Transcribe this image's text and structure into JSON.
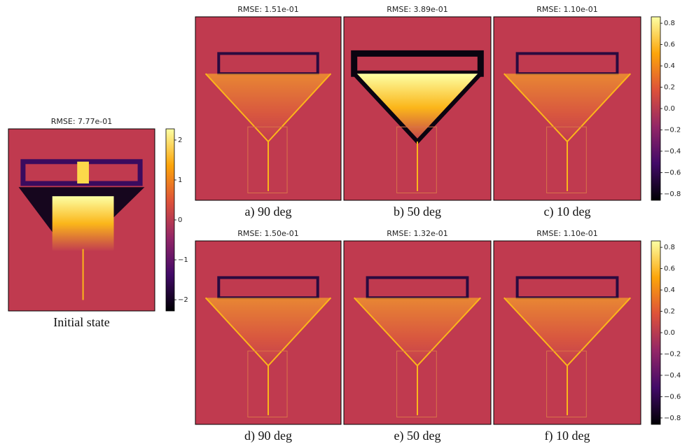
{
  "panels": [
    {
      "title": "RMSE: 7.77e-01",
      "caption": "Initial state"
    },
    {
      "title": "RMSE: 1.51e-01",
      "caption": "a) 90 deg"
    },
    {
      "title": "RMSE: 3.89e-01",
      "caption": "b) 50 deg"
    },
    {
      "title": "RMSE: 1.10e-01",
      "caption": "c) 10 deg"
    },
    {
      "title": "RMSE: 1.50e-01",
      "caption": "d) 90 deg"
    },
    {
      "title": "RMSE: 1.32e-01",
      "caption": "e) 50 deg"
    },
    {
      "title": "RMSE: 1.10e-01",
      "caption": "f) 10 deg"
    }
  ],
  "colorbars": [
    {
      "ylim": [
        -2.28,
        2.28
      ],
      "yticks": [
        2,
        1,
        0,
        {
          "value": -1,
          "label": "−1"
        },
        {
          "value": -2,
          "label": "−2"
        }
      ]
    },
    {
      "ylim": [
        -0.86,
        0.86
      ],
      "yticks": [
        0.8,
        0.6,
        0.4,
        0.2,
        {
          "value": 0,
          "label": "0.0"
        },
        {
          "value": -0.2,
          "label": "−0.2"
        },
        {
          "value": -0.4,
          "label": "−0.4"
        },
        {
          "value": -0.6,
          "label": "−0.6"
        },
        {
          "value": -0.8,
          "label": "−0.8"
        }
      ]
    },
    {
      "ylim": [
        -0.86,
        0.86
      ],
      "yticks": [
        0.8,
        0.6,
        0.4,
        0.2,
        {
          "value": 0,
          "label": "0.0"
        },
        {
          "value": -0.2,
          "label": "−0.2"
        },
        {
          "value": -0.4,
          "label": "−0.4"
        },
        {
          "value": -0.6,
          "label": "−0.6"
        },
        {
          "value": -0.8,
          "label": "−0.8"
        }
      ]
    }
  ]
}
